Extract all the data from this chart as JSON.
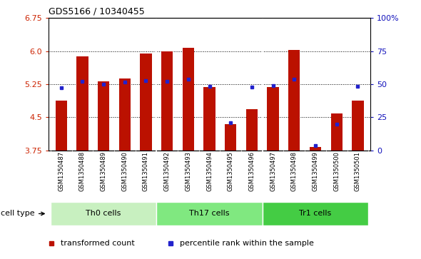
{
  "title": "GDS5166 / 10340455",
  "samples": [
    "GSM1350487",
    "GSM1350488",
    "GSM1350489",
    "GSM1350490",
    "GSM1350491",
    "GSM1350492",
    "GSM1350493",
    "GSM1350494",
    "GSM1350495",
    "GSM1350496",
    "GSM1350497",
    "GSM1350498",
    "GSM1350499",
    "GSM1350500",
    "GSM1350501"
  ],
  "red_values": [
    4.87,
    5.88,
    5.32,
    5.38,
    5.95,
    5.99,
    6.07,
    5.18,
    4.35,
    4.68,
    5.18,
    6.02,
    3.82,
    4.58,
    4.87
  ],
  "blue_values": [
    5.17,
    5.31,
    5.25,
    5.3,
    5.33,
    5.32,
    5.37,
    5.2,
    4.38,
    5.19,
    5.22,
    5.37,
    3.86,
    4.35,
    5.2
  ],
  "ymin": 3.75,
  "ymax": 6.75,
  "yticks_left": [
    3.75,
    4.5,
    5.25,
    6.0,
    6.75
  ],
  "yticks_right_pct": [
    0,
    25,
    50,
    75,
    100
  ],
  "yticks_right_labels": [
    "0",
    "25",
    "50",
    "75",
    "100%"
  ],
  "cell_groups": [
    {
      "label": "Th0 cells",
      "start": 0,
      "end": 5,
      "color": "#c8f0c0"
    },
    {
      "label": "Th17 cells",
      "start": 5,
      "end": 10,
      "color": "#80e880"
    },
    {
      "label": "Tr1 cells",
      "start": 10,
      "end": 15,
      "color": "#44cc44"
    }
  ],
  "bar_color": "#bb1100",
  "dot_color": "#2222cc",
  "label_bg": "#c8c8c8",
  "plot_bg": "#ffffff",
  "fig_bg": "#ffffff",
  "legend_items": [
    {
      "label": "transformed count",
      "color": "#bb1100"
    },
    {
      "label": "percentile rank within the sample",
      "color": "#2222cc"
    }
  ],
  "bar_width": 0.55,
  "left_tick_color": "#cc2200",
  "right_tick_color": "#1111bb"
}
